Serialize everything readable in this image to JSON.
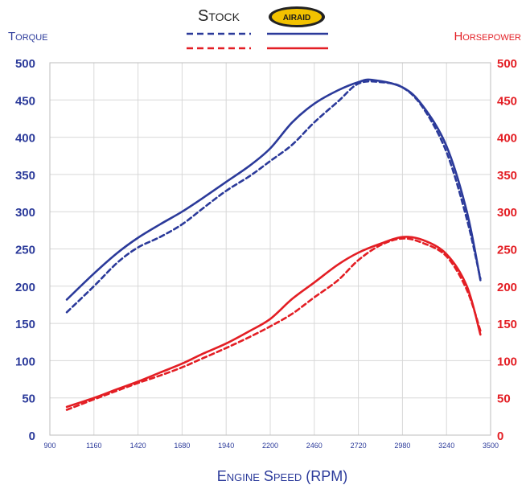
{
  "chart_data": {
    "type": "line",
    "title": "",
    "xlabel": "Engine Speed (RPM)",
    "ylabel_left": "Torque",
    "ylabel_right": "Horsepower",
    "x_ticks": [
      "900",
      "1160",
      "1420",
      "1680",
      "1940",
      "2200",
      "2460",
      "2720",
      "2980",
      "3240",
      "3500"
    ],
    "x_range": [
      900,
      3500
    ],
    "y_ticks": [
      "0",
      "50",
      "100",
      "150",
      "200",
      "250",
      "300",
      "350",
      "400",
      "450",
      "500"
    ],
    "y_range": [
      0,
      500
    ],
    "grid": true,
    "legend": {
      "stock_label": "Stock",
      "brand_label": "AIRAID"
    },
    "colors": {
      "torque": "#2b3a9a",
      "horsepower": "#e31e24",
      "axis_text_left": "#2b3a9a",
      "axis_text_right": "#e31e24",
      "grid": "#d8d8d8"
    },
    "series": [
      {
        "name": "",
        "metric": "torque",
        "variant": "stock",
        "style": "dashed",
        "x": [
          1000,
          1160,
          1300,
          1420,
          1550,
          1680,
          1800,
          1940,
          2080,
          2200,
          2330,
          2460,
          2600,
          2720,
          2850,
          2980,
          3100,
          3240,
          3360,
          3440
        ],
        "y": [
          165,
          200,
          232,
          252,
          266,
          283,
          304,
          328,
          348,
          368,
          390,
          420,
          448,
          472,
          474,
          467,
          440,
          380,
          290,
          210
        ]
      },
      {
        "name": "",
        "metric": "torque",
        "variant": "airaid",
        "style": "solid",
        "x": [
          1000,
          1160,
          1300,
          1420,
          1550,
          1680,
          1800,
          1940,
          2080,
          2200,
          2330,
          2460,
          2600,
          2720,
          2800,
          2980,
          3100,
          3240,
          3360,
          3440
        ],
        "y": [
          182,
          217,
          245,
          265,
          283,
          300,
          318,
          340,
          362,
          385,
          420,
          445,
          463,
          474,
          477,
          467,
          442,
          388,
          300,
          208
        ]
      },
      {
        "name": "",
        "metric": "horsepower",
        "variant": "stock",
        "style": "dashed",
        "x": [
          1000,
          1160,
          1300,
          1420,
          1550,
          1680,
          1800,
          1940,
          2080,
          2200,
          2330,
          2460,
          2600,
          2720,
          2850,
          2980,
          3100,
          3240,
          3360,
          3440
        ],
        "y": [
          34,
          48,
          60,
          70,
          80,
          91,
          103,
          117,
          132,
          146,
          163,
          185,
          208,
          235,
          255,
          264,
          258,
          240,
          195,
          140
        ]
      },
      {
        "name": "",
        "metric": "horsepower",
        "variant": "airaid",
        "style": "solid",
        "x": [
          1000,
          1160,
          1300,
          1420,
          1550,
          1680,
          1800,
          1940,
          2080,
          2200,
          2330,
          2460,
          2600,
          2720,
          2850,
          2980,
          3100,
          3240,
          3360,
          3440
        ],
        "y": [
          38,
          50,
          62,
          72,
          84,
          96,
          109,
          123,
          140,
          156,
          183,
          205,
          229,
          245,
          257,
          266,
          262,
          243,
          200,
          135
        ]
      }
    ]
  }
}
